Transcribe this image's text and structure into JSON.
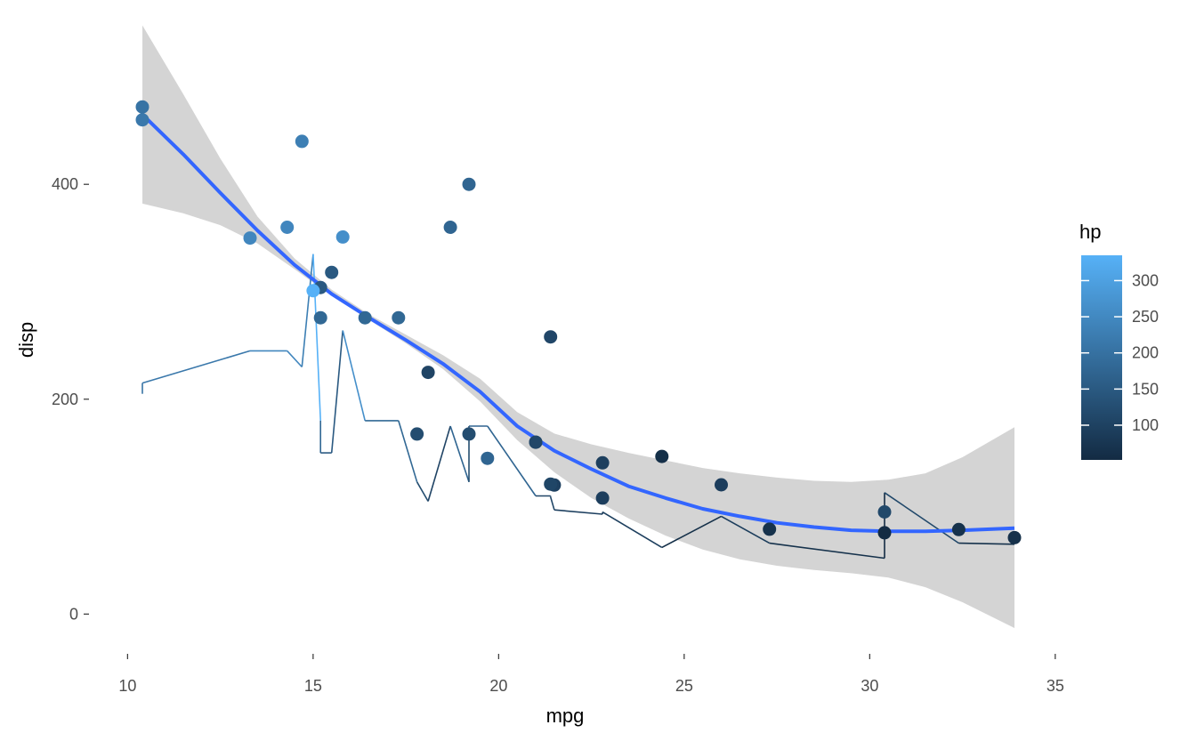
{
  "chart_data": {
    "type": "scatter",
    "title": "",
    "xlabel": "mpg",
    "ylabel": "disp",
    "xlim": [
      9.2,
      35.1
    ],
    "ylim": [
      -37,
      555
    ],
    "x_ticks": [
      10,
      15,
      20,
      25,
      30,
      35
    ],
    "y_ticks": [
      0,
      200,
      400
    ],
    "grid": false,
    "legend": {
      "title": "hp",
      "position": "right",
      "type": "colorbar",
      "range": [
        52,
        335
      ],
      "ticks": [
        100,
        150,
        200,
        250,
        300
      ],
      "color_low": "#132B43",
      "color_high": "#56B1F7"
    },
    "points": [
      {
        "x": 21.0,
        "y": 160,
        "hp": 110
      },
      {
        "x": 21.0,
        "y": 160,
        "hp": 110
      },
      {
        "x": 22.8,
        "y": 108,
        "hp": 93
      },
      {
        "x": 21.4,
        "y": 258,
        "hp": 110
      },
      {
        "x": 18.7,
        "y": 360,
        "hp": 175
      },
      {
        "x": 18.1,
        "y": 225,
        "hp": 105
      },
      {
        "x": 14.3,
        "y": 360,
        "hp": 245
      },
      {
        "x": 24.4,
        "y": 146.7,
        "hp": 62
      },
      {
        "x": 22.8,
        "y": 140.8,
        "hp": 95
      },
      {
        "x": 19.2,
        "y": 167.6,
        "hp": 123
      },
      {
        "x": 17.8,
        "y": 167.6,
        "hp": 123
      },
      {
        "x": 16.4,
        "y": 275.8,
        "hp": 180
      },
      {
        "x": 17.3,
        "y": 275.8,
        "hp": 180
      },
      {
        "x": 15.2,
        "y": 275.8,
        "hp": 180
      },
      {
        "x": 10.4,
        "y": 472,
        "hp": 205
      },
      {
        "x": 10.4,
        "y": 460,
        "hp": 215
      },
      {
        "x": 14.7,
        "y": 440,
        "hp": 230
      },
      {
        "x": 32.4,
        "y": 78.7,
        "hp": 66
      },
      {
        "x": 30.4,
        "y": 75.7,
        "hp": 52
      },
      {
        "x": 33.9,
        "y": 71.1,
        "hp": 65
      },
      {
        "x": 21.5,
        "y": 120.1,
        "hp": 97
      },
      {
        "x": 15.5,
        "y": 318,
        "hp": 150
      },
      {
        "x": 15.2,
        "y": 304,
        "hp": 150
      },
      {
        "x": 13.3,
        "y": 350,
        "hp": 245
      },
      {
        "x": 19.2,
        "y": 400,
        "hp": 175
      },
      {
        "x": 27.3,
        "y": 79,
        "hp": 66
      },
      {
        "x": 26.0,
        "y": 120.3,
        "hp": 91
      },
      {
        "x": 30.4,
        "y": 95.1,
        "hp": 113
      },
      {
        "x": 15.8,
        "y": 351,
        "hp": 264
      },
      {
        "x": 19.7,
        "y": 145,
        "hp": 175
      },
      {
        "x": 15.0,
        "y": 301,
        "hp": 335
      },
      {
        "x": 21.4,
        "y": 121,
        "hp": 109
      }
    ],
    "hp_line": [
      {
        "x": 10.4,
        "y": 205
      },
      {
        "x": 10.4,
        "y": 215
      },
      {
        "x": 13.3,
        "y": 245
      },
      {
        "x": 14.3,
        "y": 245
      },
      {
        "x": 14.7,
        "y": 230
      },
      {
        "x": 15.0,
        "y": 335
      },
      {
        "x": 15.2,
        "y": 180
      },
      {
        "x": 15.2,
        "y": 150
      },
      {
        "x": 15.5,
        "y": 150
      },
      {
        "x": 15.8,
        "y": 264
      },
      {
        "x": 16.4,
        "y": 180
      },
      {
        "x": 17.3,
        "y": 180
      },
      {
        "x": 17.8,
        "y": 123
      },
      {
        "x": 18.1,
        "y": 105
      },
      {
        "x": 18.7,
        "y": 175
      },
      {
        "x": 19.2,
        "y": 123
      },
      {
        "x": 19.2,
        "y": 175
      },
      {
        "x": 19.7,
        "y": 175
      },
      {
        "x": 21.0,
        "y": 110
      },
      {
        "x": 21.0,
        "y": 110
      },
      {
        "x": 21.4,
        "y": 110
      },
      {
        "x": 21.4,
        "y": 109
      },
      {
        "x": 21.5,
        "y": 97
      },
      {
        "x": 22.8,
        "y": 93
      },
      {
        "x": 22.8,
        "y": 95
      },
      {
        "x": 24.4,
        "y": 62
      },
      {
        "x": 26.0,
        "y": 91
      },
      {
        "x": 27.3,
        "y": 66
      },
      {
        "x": 30.4,
        "y": 52
      },
      {
        "x": 30.4,
        "y": 113
      },
      {
        "x": 32.4,
        "y": 66
      },
      {
        "x": 33.9,
        "y": 65
      }
    ],
    "smooth": {
      "color": "#3366FF",
      "fill": "#d4d4d4",
      "x": [
        10.4,
        11.5,
        12.5,
        13.5,
        14.5,
        15.5,
        16.5,
        17.5,
        18.5,
        19.5,
        20.5,
        21.5,
        22.5,
        23.5,
        24.5,
        25.5,
        26.5,
        27.5,
        28.5,
        29.5,
        30.5,
        31.5,
        32.5,
        33.9
      ],
      "y": [
        465,
        428,
        392,
        357,
        325,
        298,
        276,
        255,
        233,
        207,
        175,
        152,
        135,
        119,
        108,
        98,
        91,
        85,
        81,
        78,
        77,
        77,
        78,
        80
      ],
      "lower": [
        382,
        373,
        362,
        345,
        321,
        296,
        274,
        252,
        228,
        198,
        162,
        132,
        108,
        89,
        73,
        60,
        51,
        45,
        41,
        38,
        34,
        25,
        11,
        -13
      ],
      "upper": [
        548,
        484,
        424,
        370,
        331,
        302,
        279,
        260,
        241,
        219,
        188,
        168,
        158,
        150,
        143,
        136,
        131,
        127,
        124,
        123,
        125,
        131,
        146,
        174
      ]
    }
  }
}
